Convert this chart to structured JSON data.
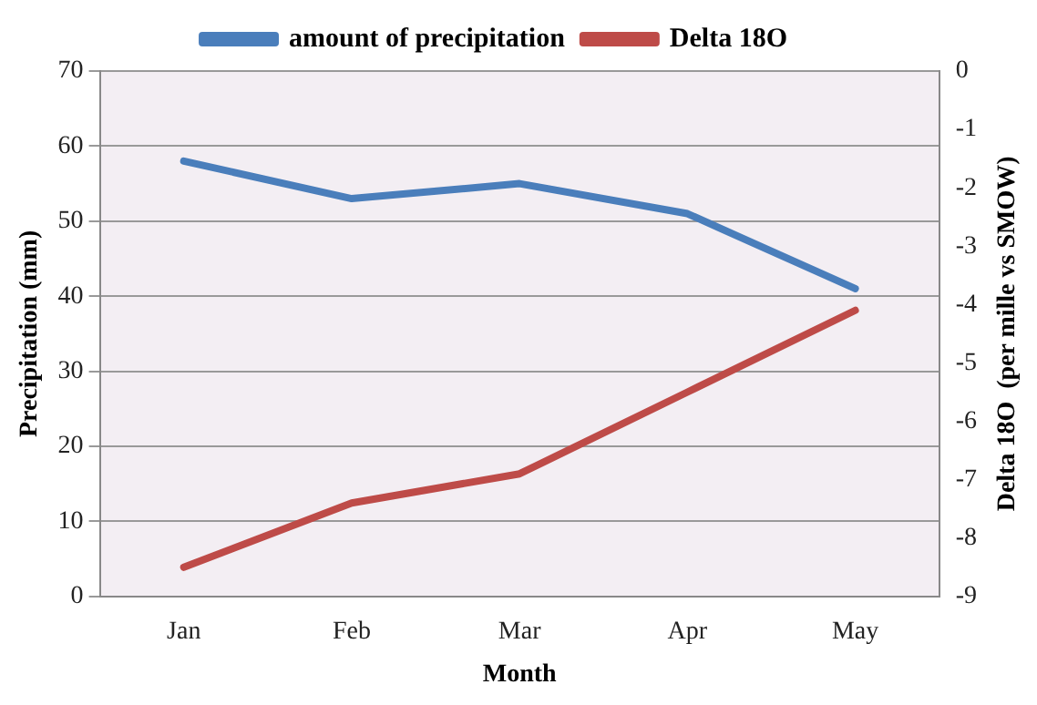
{
  "chart_data": {
    "type": "line",
    "xlabel": "Month",
    "ylabel": "Precipitation (mm)",
    "y2label": "Delta 18O  (per mille vs SMOW)",
    "categories": [
      "Jan",
      "Feb",
      "Mar",
      "Apr",
      "May"
    ],
    "series": [
      {
        "name": "amount of precipitation",
        "color": "#4a7ebb",
        "values": [
          58,
          53,
          55,
          51,
          41
        ]
      },
      {
        "name": "Delta 18O",
        "color": "#be4b48",
        "axis": "y2",
        "values": [
          -8.5,
          -7.4,
          -6.9,
          -5.5,
          -4.1
        ]
      }
    ],
    "ylim": [
      0,
      70
    ],
    "yticks": [
      0,
      10,
      20,
      30,
      40,
      50,
      60,
      70
    ],
    "y2lim": [
      -9,
      0
    ],
    "y2ticks": [
      -9,
      -8,
      -7,
      -6,
      -5,
      -4,
      -3,
      -2,
      -1,
      0
    ],
    "grid": "y",
    "legend": "top",
    "marker": "none",
    "line_style": "solid"
  }
}
